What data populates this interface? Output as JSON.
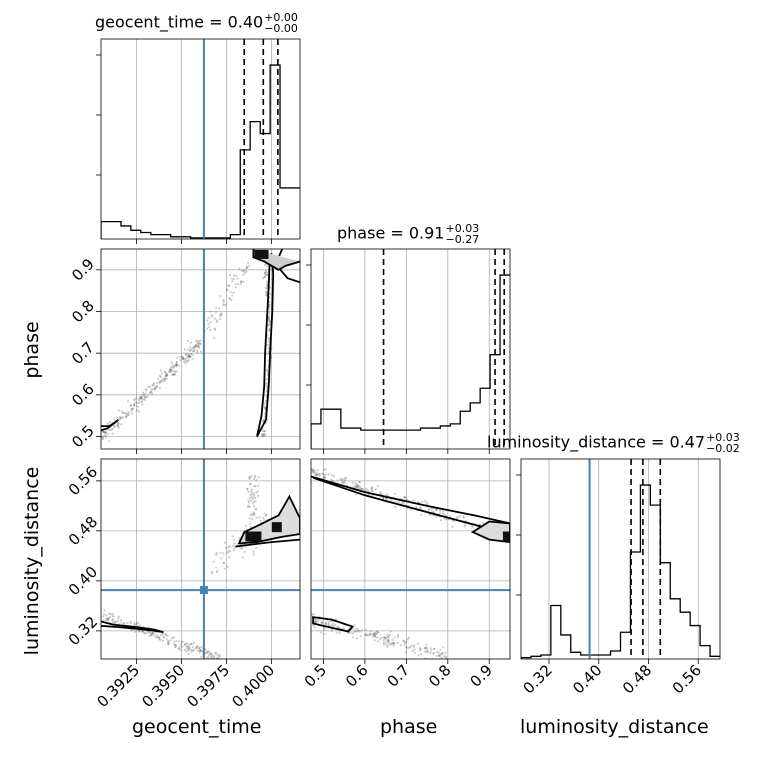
{
  "params": [
    "geocent_time",
    "phase",
    "luminosity_distance"
  ],
  "titles": [
    {
      "param": "geocent_time",
      "text": "geocent_time = 0.40",
      "plus": "+0.00",
      "minus": "−0.00"
    },
    {
      "param": "phase",
      "text": "phase = 0.91",
      "plus": "+0.03",
      "minus": "−0.27"
    },
    {
      "param": "luminosity_distance",
      "text": "luminosity_distance = 0.47",
      "plus": "+0.03",
      "minus": "−0.02"
    }
  ],
  "colors": {
    "truth": "#4682b4",
    "hist": "#000000",
    "grid": "#b0b0b0",
    "points": "#555555"
  },
  "chart_data": {
    "type": "corner",
    "xlabels": [
      "geocent_time",
      "phase",
      "luminosity_distance"
    ],
    "ylabels": [
      "",
      "phase",
      "luminosity_distance"
    ],
    "ranges": {
      "geocent_time": [
        0.39053,
        0.40159
      ],
      "phase": [
        0.47,
        0.95
      ],
      "luminosity_distance": [
        0.275,
        0.595
      ]
    },
    "ticks": {
      "geocent_time": [
        "0.3925",
        "0.3950",
        "0.3975",
        "0.4000"
      ],
      "phase": [
        "0.5",
        "0.6",
        "0.7",
        "0.8",
        "0.9"
      ],
      "luminosity_distance": [
        "0.32",
        "0.40",
        "0.48",
        "0.56"
      ]
    },
    "truths": {
      "geocent_time": 0.39625,
      "phase": null,
      "luminosity_distance": 0.3853
    },
    "quantiles": {
      "geocent_time": [
        0.39849,
        0.39955,
        0.40036
      ],
      "phase": [
        0.645,
        0.914,
        0.936
      ],
      "luminosity_distance": [
        0.452,
        0.471,
        0.499
      ]
    },
    "histograms": {
      "geocent_time": {
        "edges": [
          0.39053,
          0.39108,
          0.39164,
          0.39219,
          0.39274,
          0.3933,
          0.39385,
          0.3944,
          0.39496,
          0.39551,
          0.39606,
          0.39661,
          0.39717,
          0.39772,
          0.39827,
          0.39882,
          0.39938,
          0.39993,
          0.40048,
          0.40104,
          0.40159
        ],
        "counts": [
          16,
          16,
          12,
          8,
          6,
          4,
          4,
          2,
          2,
          1,
          1,
          1,
          1,
          4,
          82,
          108,
          97,
          160,
          47,
          47
        ]
      },
      "phase": {
        "edges": [
          0.47,
          0.494,
          0.518,
          0.542,
          0.566,
          0.59,
          0.614,
          0.638,
          0.662,
          0.686,
          0.71,
          0.734,
          0.758,
          0.782,
          0.806,
          0.83,
          0.854,
          0.878,
          0.902,
          0.926,
          0.95
        ],
        "counts": [
          12,
          19,
          19,
          10,
          10,
          9,
          9,
          9,
          9,
          9,
          9,
          10,
          10,
          11,
          12,
          18,
          22,
          29,
          45,
          83
        ]
      },
      "luminosity_distance": {
        "edges": [
          0.275,
          0.291,
          0.307,
          0.323,
          0.339,
          0.355,
          0.371,
          0.387,
          0.403,
          0.419,
          0.435,
          0.451,
          0.467,
          0.483,
          0.499,
          0.515,
          0.531,
          0.547,
          0.563,
          0.579,
          0.595
        ],
        "counts": [
          1,
          2,
          3,
          40,
          18,
          5,
          3,
          3,
          3,
          6,
          20,
          80,
          130,
          115,
          72,
          45,
          35,
          25,
          10,
          2
        ]
      }
    }
  }
}
